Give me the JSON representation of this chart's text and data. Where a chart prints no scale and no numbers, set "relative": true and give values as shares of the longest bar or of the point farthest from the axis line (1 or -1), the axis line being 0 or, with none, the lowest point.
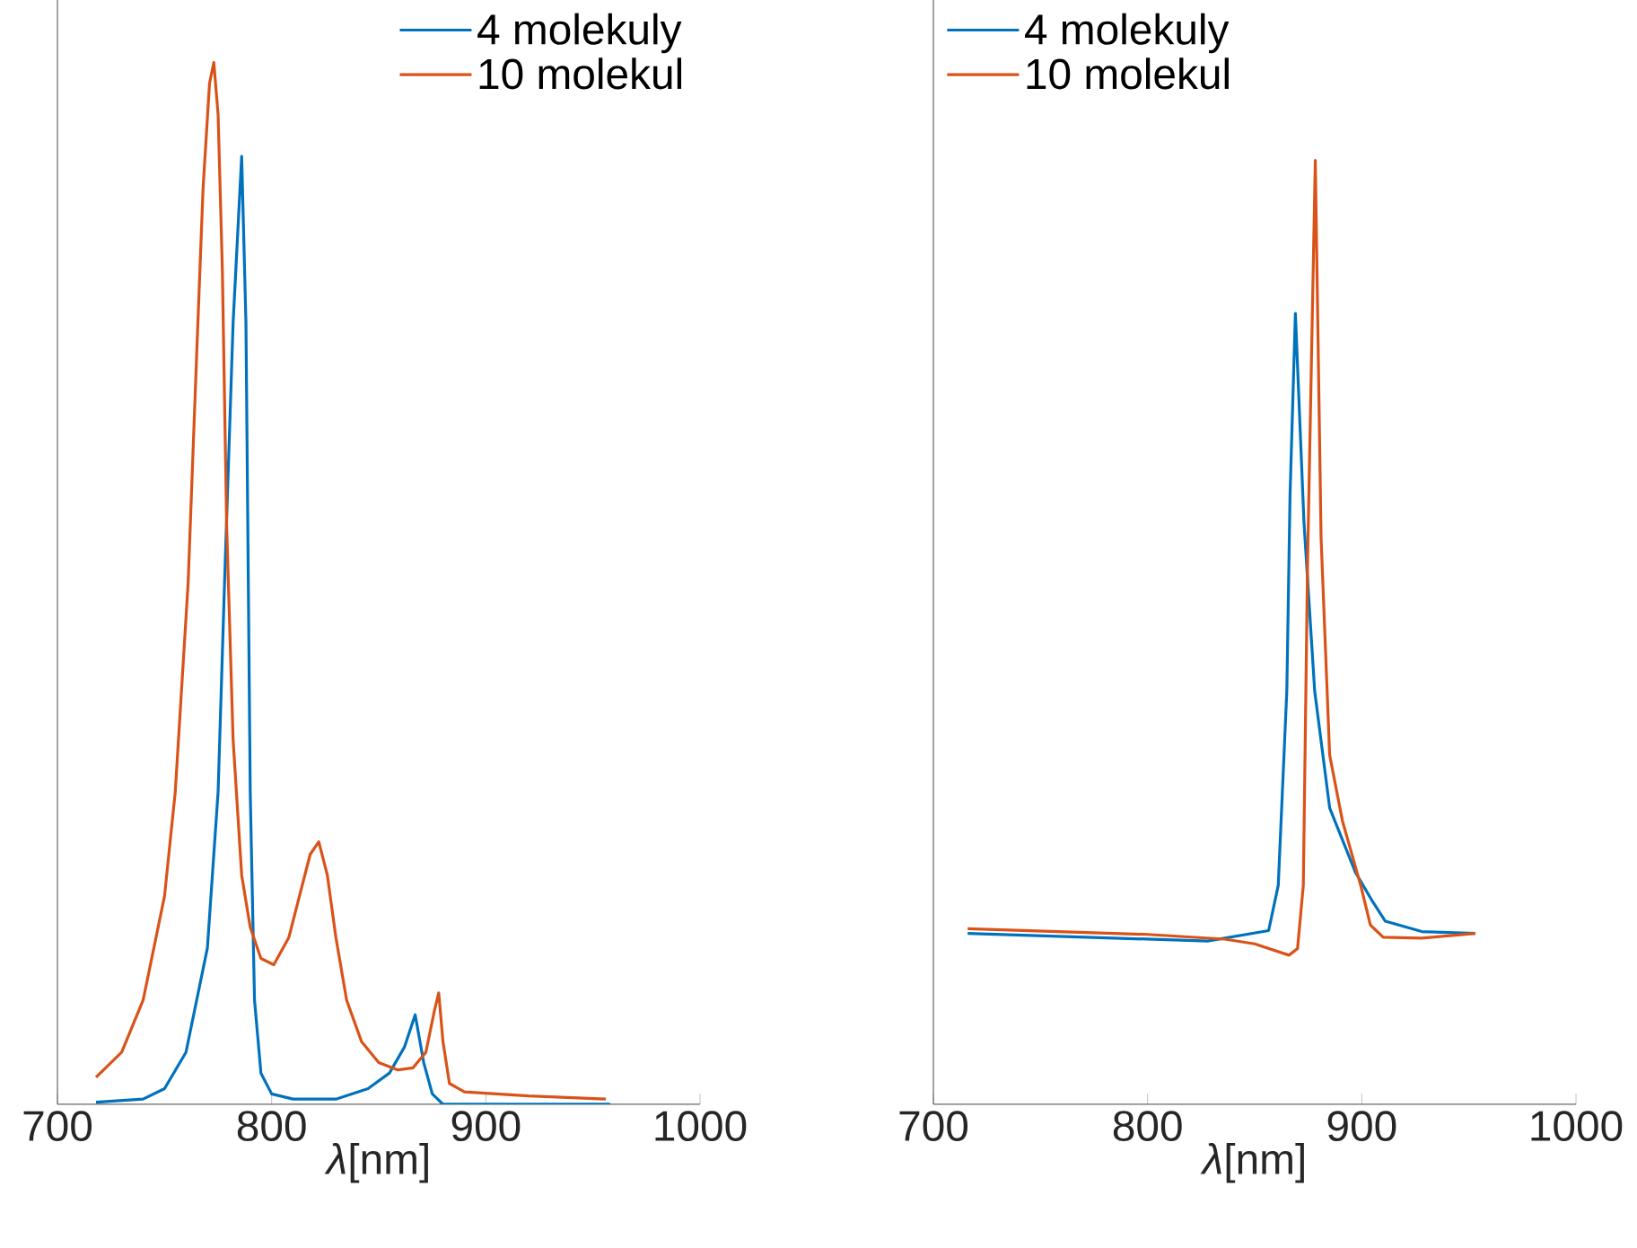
{
  "chart_data": [
    {
      "type": "line",
      "relative": true,
      "xlim": [
        700,
        1000
      ],
      "xticks": [
        700,
        800,
        900,
        1000
      ],
      "xlabel": "*λ*[nm]",
      "legend": "top right",
      "series": [
        {
          "name": "4 molekuly",
          "color": "#0072bd",
          "x": [
            718,
            740,
            750,
            760,
            770,
            775,
            778,
            782,
            786,
            788,
            790,
            792,
            795,
            800,
            810,
            830,
            845,
            855,
            862,
            867,
            871,
            875,
            880,
            900,
            958
          ],
          "values": [
            0.002,
            0.005,
            0.015,
            0.05,
            0.15,
            0.3,
            0.5,
            0.75,
            0.91,
            0.75,
            0.3,
            0.1,
            0.03,
            0.01,
            0.005,
            0.005,
            0.015,
            0.03,
            0.055,
            0.086,
            0.04,
            0.01,
            0.0,
            0.0,
            0.0
          ]
        },
        {
          "name": "10 molekul",
          "color": "#d95319",
          "x": [
            718,
            730,
            740,
            750,
            755,
            761,
            765,
            768,
            771,
            773,
            775,
            777,
            779,
            782,
            786,
            790,
            795,
            801,
            808,
            813,
            818,
            822,
            826,
            830,
            835,
            842,
            850,
            859,
            866,
            872,
            876,
            878,
            880,
            883,
            890,
            920,
            956
          ],
          "values": [
            0.026,
            0.05,
            0.1,
            0.2,
            0.3,
            0.5,
            0.72,
            0.88,
            0.98,
            1.0,
            0.95,
            0.8,
            0.555,
            0.35,
            0.22,
            0.17,
            0.14,
            0.134,
            0.16,
            0.2,
            0.24,
            0.252,
            0.22,
            0.16,
            0.1,
            0.06,
            0.04,
            0.033,
            0.035,
            0.05,
            0.09,
            0.107,
            0.06,
            0.02,
            0.012,
            0.008,
            0.005
          ]
        }
      ]
    },
    {
      "type": "line",
      "relative": true,
      "xlim": [
        700,
        1000
      ],
      "xticks": [
        700,
        800,
        900,
        1000
      ],
      "xlabel": "*λ*[nm]",
      "legend": "top left",
      "series": [
        {
          "name": "4 molekuly",
          "color": "#0072bd",
          "x": [
            716,
            828,
            856.5,
            861,
            865,
            866.5,
            869,
            873,
            878,
            885,
            897,
            905,
            911,
            928,
            953
          ],
          "values": [
            0.181,
            0.173,
            0.184,
            0.232,
            0.438,
            0.645,
            0.838,
            0.617,
            0.438,
            0.314,
            0.246,
            0.215,
            0.194,
            0.183,
            0.181
          ]
        },
        {
          "name": "10 molekul",
          "color": "#d95319",
          "x": [
            716,
            800,
            836,
            850,
            866,
            870,
            872.7,
            874.7,
            878.3,
            881,
            885,
            891,
            899.5,
            904,
            910,
            928,
            953
          ],
          "values": [
            0.186,
            0.18,
            0.175,
            0.17,
            0.158,
            0.165,
            0.232,
            0.576,
            1.0,
            0.6,
            0.37,
            0.3,
            0.232,
            0.19,
            0.177,
            0.176,
            0.181
          ]
        }
      ]
    }
  ]
}
